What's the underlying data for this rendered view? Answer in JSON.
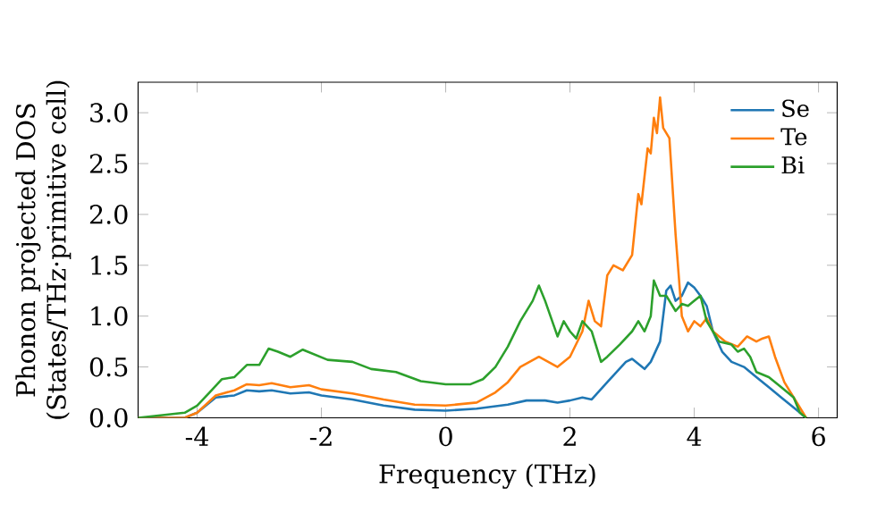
{
  "chart_data": {
    "type": "line",
    "xlabel": "Frequency (THz)",
    "ylabel": "Phonon projected DOS\n(States/THz·primitive cell)",
    "xlim": [
      -4.95,
      6.3
    ],
    "ylim": [
      0,
      3.3
    ],
    "xticks": [
      -4,
      -2,
      0,
      2,
      4,
      6
    ],
    "yticks": [
      {
        "value": 0,
        "label": "0.0"
      },
      {
        "value": 0.5,
        "label": "0.5"
      },
      {
        "value": 1,
        "label": "1.0"
      },
      {
        "value": 1.5,
        "label": "1.5"
      },
      {
        "value": 2,
        "label": "2.0"
      },
      {
        "value": 2.5,
        "label": "2.5"
      },
      {
        "value": 3,
        "label": "3.0"
      }
    ],
    "legend": "top right",
    "grid": false,
    "marker": "none",
    "line_style": "solid",
    "series": [
      {
        "name": "Se",
        "color": "#1f77b4",
        "x": [
          -4.95,
          -4.2,
          -4.0,
          -3.7,
          -3.4,
          -3.2,
          -3.0,
          -2.8,
          -2.5,
          -2.2,
          -2.0,
          -1.5,
          -1.0,
          -0.5,
          0.0,
          0.5,
          1.0,
          1.3,
          1.6,
          1.8,
          2.0,
          2.2,
          2.35,
          2.6,
          2.9,
          3.0,
          3.2,
          3.3,
          3.45,
          3.55,
          3.62,
          3.7,
          3.8,
          3.9,
          4.0,
          4.1,
          4.2,
          4.3,
          4.45,
          4.6,
          4.8,
          5.0,
          5.2,
          5.4,
          5.6,
          5.8
        ],
        "values": [
          0.0,
          0.0,
          0.05,
          0.2,
          0.22,
          0.27,
          0.26,
          0.27,
          0.24,
          0.25,
          0.22,
          0.18,
          0.12,
          0.08,
          0.07,
          0.09,
          0.13,
          0.17,
          0.17,
          0.15,
          0.17,
          0.2,
          0.18,
          0.35,
          0.55,
          0.58,
          0.48,
          0.55,
          0.75,
          1.25,
          1.3,
          1.15,
          1.2,
          1.33,
          1.28,
          1.2,
          1.1,
          0.85,
          0.65,
          0.55,
          0.5,
          0.4,
          0.3,
          0.2,
          0.1,
          0.0
        ]
      },
      {
        "name": "Te",
        "color": "#ff7f0e",
        "x": [
          -4.95,
          -4.2,
          -4.0,
          -3.7,
          -3.4,
          -3.2,
          -3.0,
          -2.8,
          -2.5,
          -2.2,
          -2.0,
          -1.5,
          -1.0,
          -0.5,
          0.0,
          0.5,
          0.8,
          1.0,
          1.2,
          1.5,
          1.8,
          2.0,
          2.2,
          2.3,
          2.4,
          2.5,
          2.6,
          2.7,
          2.85,
          3.0,
          3.1,
          3.15,
          3.25,
          3.3,
          3.35,
          3.4,
          3.45,
          3.5,
          3.6,
          3.7,
          3.8,
          3.9,
          4.0,
          4.1,
          4.2,
          4.3,
          4.5,
          4.7,
          4.85,
          5.0,
          5.1,
          5.2,
          5.3,
          5.45,
          5.6,
          5.75,
          5.8
        ],
        "values": [
          0.0,
          0.0,
          0.05,
          0.22,
          0.27,
          0.33,
          0.32,
          0.34,
          0.3,
          0.32,
          0.28,
          0.24,
          0.18,
          0.13,
          0.12,
          0.15,
          0.25,
          0.35,
          0.5,
          0.6,
          0.5,
          0.6,
          0.85,
          1.15,
          0.95,
          0.9,
          1.4,
          1.5,
          1.45,
          1.6,
          2.2,
          2.1,
          2.65,
          2.6,
          2.95,
          2.8,
          3.15,
          2.85,
          2.75,
          1.8,
          1.0,
          0.85,
          0.95,
          0.9,
          0.98,
          0.85,
          0.75,
          0.7,
          0.8,
          0.75,
          0.78,
          0.8,
          0.6,
          0.35,
          0.2,
          0.05,
          0.0
        ]
      },
      {
        "name": "Bi",
        "color": "#2ca02c",
        "x": [
          -4.95,
          -4.2,
          -4.0,
          -3.8,
          -3.6,
          -3.4,
          -3.2,
          -3.0,
          -2.85,
          -2.7,
          -2.5,
          -2.3,
          -2.1,
          -1.9,
          -1.5,
          -1.2,
          -0.8,
          -0.4,
          0.0,
          0.4,
          0.6,
          0.8,
          1.0,
          1.2,
          1.4,
          1.5,
          1.6,
          1.8,
          1.9,
          2.0,
          2.1,
          2.2,
          2.35,
          2.5,
          2.6,
          2.8,
          3.0,
          3.1,
          3.2,
          3.3,
          3.35,
          3.45,
          3.55,
          3.7,
          3.8,
          3.9,
          4.0,
          4.1,
          4.2,
          4.3,
          4.4,
          4.6,
          4.7,
          4.8,
          4.9,
          5.0,
          5.2,
          5.4,
          5.6,
          5.7,
          5.8
        ],
        "values": [
          0.0,
          0.05,
          0.12,
          0.25,
          0.38,
          0.4,
          0.52,
          0.52,
          0.68,
          0.65,
          0.6,
          0.67,
          0.62,
          0.57,
          0.55,
          0.48,
          0.45,
          0.36,
          0.33,
          0.33,
          0.38,
          0.5,
          0.7,
          0.95,
          1.15,
          1.3,
          1.15,
          0.8,
          0.95,
          0.85,
          0.78,
          0.95,
          0.85,
          0.55,
          0.6,
          0.72,
          0.85,
          0.95,
          0.85,
          1.0,
          1.35,
          1.2,
          1.2,
          1.05,
          1.12,
          1.1,
          1.15,
          1.2,
          0.95,
          0.85,
          0.75,
          0.72,
          0.65,
          0.68,
          0.6,
          0.45,
          0.4,
          0.3,
          0.2,
          0.05,
          0.0
        ]
      }
    ]
  }
}
